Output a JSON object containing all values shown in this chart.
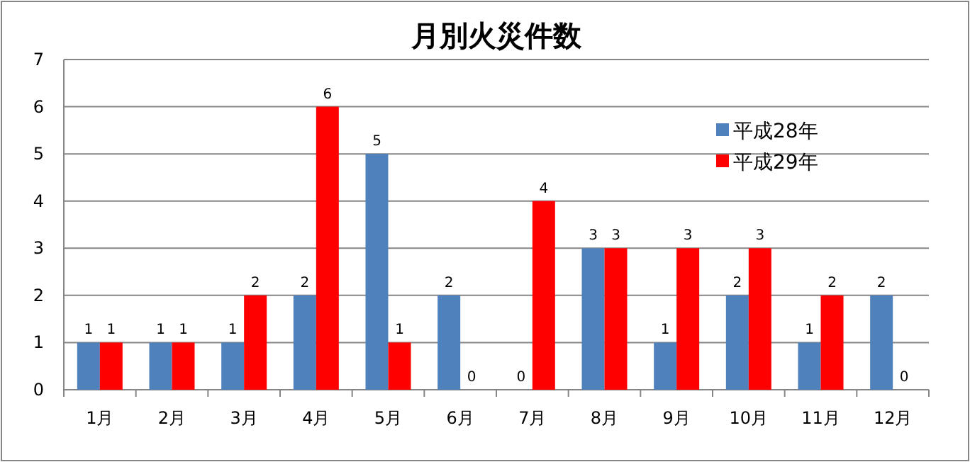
{
  "chart_data": {
    "type": "bar",
    "title": "月別火災件数",
    "categories": [
      "1月",
      "2月",
      "3月",
      "4月",
      "5月",
      "6月",
      "7月",
      "8月",
      "9月",
      "10月",
      "11月",
      "12月"
    ],
    "series": [
      {
        "name": "平成28年",
        "color": "#4f81bd",
        "values": [
          1,
          1,
          1,
          2,
          5,
          2,
          0,
          3,
          1,
          2,
          1,
          2
        ]
      },
      {
        "name": "平成29年",
        "color": "#ff0000",
        "values": [
          1,
          1,
          2,
          6,
          1,
          0,
          4,
          3,
          3,
          3,
          2,
          0
        ]
      }
    ],
    "ylim": [
      0,
      7
    ],
    "yticks": [
      0,
      1,
      2,
      3,
      4,
      5,
      6,
      7
    ],
    "grid": "y",
    "legend": "top right",
    "data_labels": true
  }
}
